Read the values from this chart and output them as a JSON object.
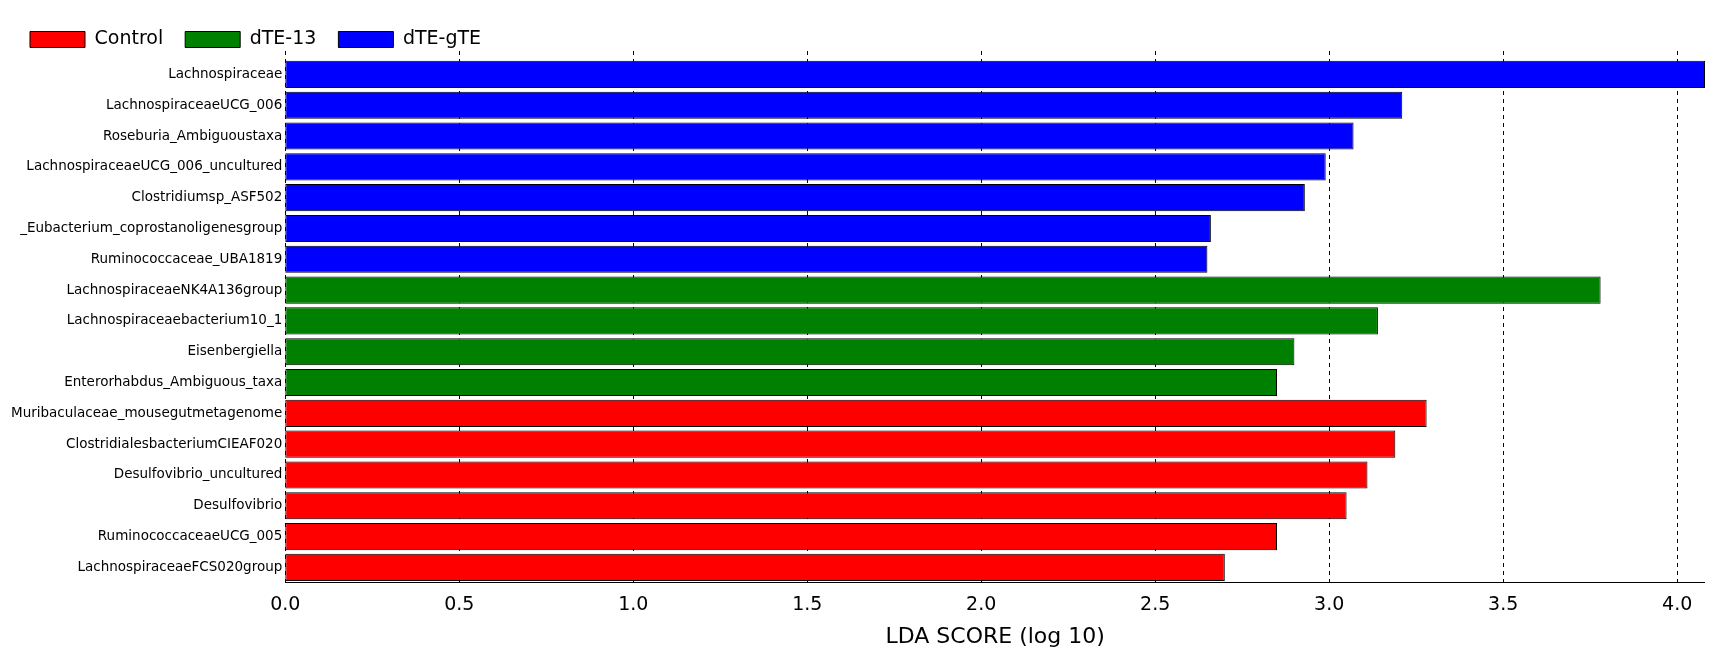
{
  "chart_data": {
    "type": "bar",
    "orientation": "horizontal",
    "xlabel": "LDA SCORE (log 10)",
    "categories": [
      "Lachnospiraceae",
      "LachnospiraceaeUCG_006",
      "Roseburia_Ambiguoustaxa",
      "LachnospiraceaeUCG_006_uncultured",
      "Clostridiumsp_ASF502",
      "_Eubacterium_coprostanoligenesgroup",
      "Ruminococcaceae_UBA1819",
      "LachnospiraceaeNK4A136group",
      "Lachnospiraceaebacterium10_1",
      "Eisenbergiella",
      "Enterorhabdus_Ambiguous_taxa",
      "Muribaculaceae_mousegutmetagenome",
      "ClostridialesbacteriumCIEAF020",
      "Desulfovibrio_uncultured",
      "Desulfovibrio",
      "RuminococcaceaeUCG_005",
      "LachnospiraceaeFCS020group"
    ],
    "series": [
      {
        "name": "Control",
        "color": "#ff0000",
        "values": [
          null,
          null,
          null,
          null,
          null,
          null,
          null,
          null,
          null,
          null,
          null,
          3.28,
          3.19,
          3.11,
          3.05,
          2.85,
          2.7
        ]
      },
      {
        "name": "dTE-13",
        "color": "#008000",
        "values": [
          null,
          null,
          null,
          null,
          null,
          null,
          null,
          3.78,
          3.14,
          2.9,
          2.85,
          null,
          null,
          null,
          null,
          null,
          null
        ]
      },
      {
        "name": "dTE-gTE",
        "color": "#0000ff",
        "values": [
          4.08,
          3.21,
          3.07,
          2.99,
          2.93,
          2.66,
          2.65,
          null,
          null,
          null,
          null,
          null,
          null,
          null,
          null,
          null,
          null
        ]
      }
    ],
    "xlim": [
      0,
      4.08
    ],
    "xticks": [
      {
        "value": 0,
        "label": "0.0"
      },
      {
        "value": 0.5,
        "label": "0.5"
      },
      {
        "value": 1,
        "label": "1.0"
      },
      {
        "value": 1.5,
        "label": "1.5"
      },
      {
        "value": 2,
        "label": "2.0"
      },
      {
        "value": 2.5,
        "label": "2.5"
      },
      {
        "value": 3,
        "label": "3.0"
      },
      {
        "value": 3.5,
        "label": "3.5"
      },
      {
        "value": 4,
        "label": "4.0"
      }
    ],
    "grid": "x",
    "legend": "top left"
  }
}
